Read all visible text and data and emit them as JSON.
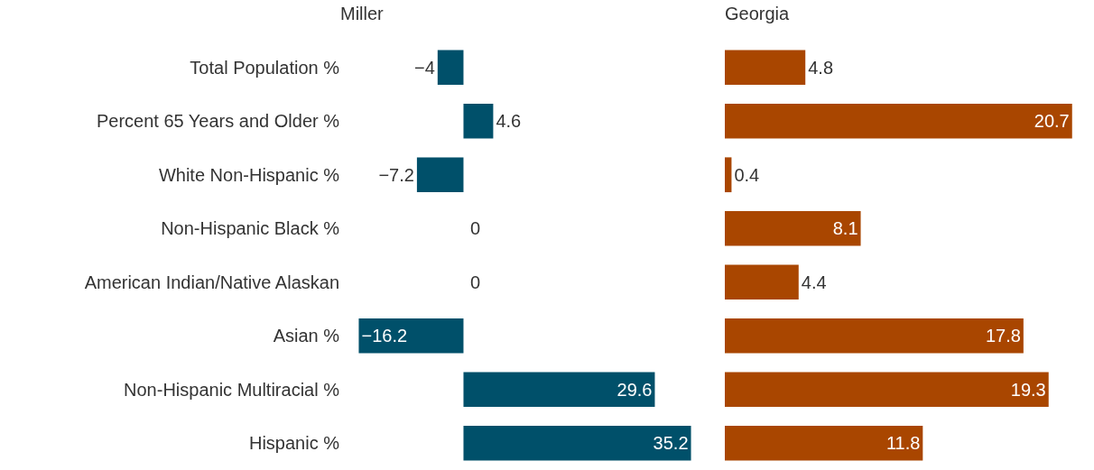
{
  "chart_data": [
    {
      "type": "bar",
      "orientation": "horizontal",
      "title": "Miller",
      "categories": [
        "Total Population %",
        "Percent 65 Years and Older %",
        "White Non-Hispanic %",
        "Non-Hispanic Black %",
        "American Indian/Native Alaskan",
        "Asian %",
        "Non-Hispanic Multiracial %",
        "Hispanic %"
      ],
      "values": [
        -4,
        4.6,
        -7.2,
        0,
        0,
        -16.2,
        29.6,
        35.2
      ],
      "color": "#00506a",
      "data_labels": true,
      "tick_labels": "y",
      "grid": false
    },
    {
      "type": "bar",
      "orientation": "horizontal",
      "title": "Georgia",
      "categories": [
        null,
        null,
        null,
        null,
        null,
        null,
        null,
        null
      ],
      "values": [
        4.8,
        20.7,
        0.4,
        8.1,
        4.4,
        17.8,
        19.3,
        11.8
      ],
      "color": "#a94600",
      "data_labels": true,
      "tick_labels": false,
      "grid": false
    }
  ]
}
